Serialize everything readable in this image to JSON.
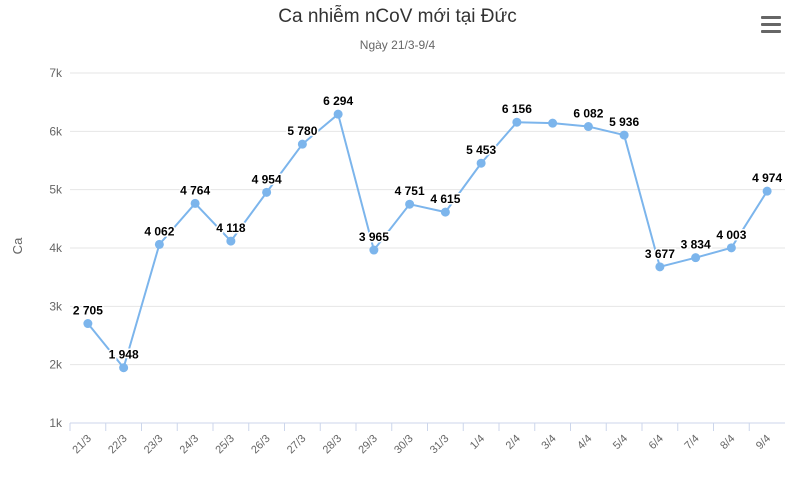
{
  "chart_data": {
    "type": "line",
    "title": "Ca nhiễm nCoV mới tại Đức",
    "subtitle": "Ngày 21/3-9/4",
    "ylabel": "Ca",
    "xlabel": "",
    "ylim": [
      1000,
      7000
    ],
    "yticks": [
      1000,
      2000,
      3000,
      4000,
      5000,
      6000,
      7000
    ],
    "ytick_labels": [
      "1k",
      "2k",
      "3k",
      "4k",
      "5k",
      "6k",
      "7k"
    ],
    "grid": true,
    "legend": "none",
    "categories": [
      "21/3",
      "22/3",
      "23/3",
      "24/3",
      "25/3",
      "26/3",
      "27/3",
      "28/3",
      "29/3",
      "30/3",
      "31/3",
      "1/4",
      "2/4",
      "3/4",
      "4/4",
      "5/4",
      "6/4",
      "7/4",
      "8/4",
      "9/4"
    ],
    "values": [
      2705,
      1948,
      4062,
      4764,
      4118,
      4954,
      5780,
      6294,
      3965,
      4751,
      4615,
      5453,
      6156,
      6140,
      6082,
      5936,
      3677,
      3834,
      4003,
      4974
    ],
    "data_labels": [
      "2 705",
      "1 948",
      "4 062",
      "4 764",
      "4 118",
      "4 954",
      "5 780",
      "6 294",
      "3 965",
      "4 751",
      "4 615",
      "5 453",
      "6 156",
      "",
      "6 082",
      "5 936",
      "3 677",
      "3 834",
      "4 003",
      "4 974"
    ],
    "color": "#7cb5ec"
  },
  "menu": {
    "icon": "hamburger-menu-icon"
  }
}
